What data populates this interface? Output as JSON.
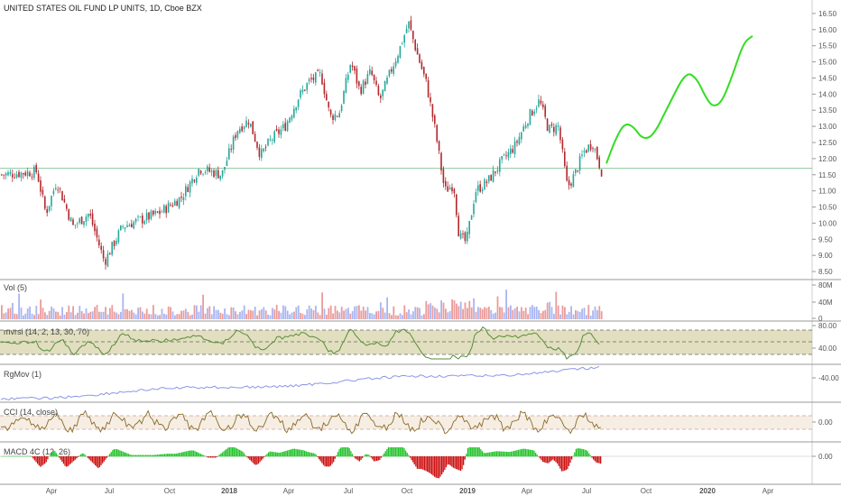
{
  "header": {
    "symbol_title": "UNITED STATES OIL FUND LP UNITS, 1D, Cboe BZX"
  },
  "colors": {
    "up": "#26a69a",
    "down": "#b2282d",
    "forecast": "#33dd22",
    "support_line": "#8fc9a0",
    "vol_up": "#9aa8f0",
    "vol_down": "#e88a88",
    "mvrsi_band": "#c8c48a",
    "mvrsi_line": "#5a8c3a",
    "rgmov_line": "#8c96e6",
    "cci_line": "#8a6a2a",
    "cci_band": "#f5ece0",
    "macd_pos": "#22c22a",
    "macd_neg": "#cc1010"
  },
  "price_axis": {
    "ticks": [
      "16.50",
      "16.00",
      "15.50",
      "15.00",
      "14.50",
      "14.00",
      "13.50",
      "13.00",
      "12.50",
      "12.00",
      "11.50",
      "11.00",
      "10.50",
      "10.00",
      "9.50",
      "9.00",
      "8.50"
    ]
  },
  "time_axis": {
    "labels": [
      "Apr",
      "Jul",
      "Oct",
      "2018",
      "Apr",
      "Jul",
      "Oct",
      "2019",
      "Apr",
      "Jul",
      "Oct",
      "2020",
      "Apr"
    ]
  },
  "panes": {
    "vol": {
      "title": "Vol (5)",
      "ticks": [
        "80M",
        "40M",
        "0"
      ]
    },
    "mvrsi": {
      "title": "mvrsi (14, 2, 13, 30, 70)",
      "ticks": [
        "80.00",
        "40.00"
      ]
    },
    "rgmov": {
      "title": "RgMov (1)",
      "ticks": [
        "-40.00"
      ]
    },
    "cci": {
      "title": "CCI (14, close)",
      "ticks": [
        "0.00"
      ]
    },
    "macd": {
      "title": "MACD 4C (12, 26)",
      "ticks": [
        "0.00"
      ]
    }
  },
  "chart_data": {
    "type": "line",
    "support_level": 11.7,
    "ylim": [
      8.25,
      16.75
    ],
    "price_series": [
      {
        "t": 0,
        "p": 11.5
      },
      {
        "t": 40,
        "p": 11.6
      },
      {
        "t": 50,
        "p": 10.3
      },
      {
        "t": 62,
        "p": 11.3
      },
      {
        "t": 80,
        "p": 9.9
      },
      {
        "t": 98,
        "p": 10.3
      },
      {
        "t": 115,
        "p": 8.8
      },
      {
        "t": 135,
        "p": 9.9
      },
      {
        "t": 155,
        "p": 10.1
      },
      {
        "t": 175,
        "p": 10.3
      },
      {
        "t": 200,
        "p": 10.8
      },
      {
        "t": 220,
        "p": 11.7
      },
      {
        "t": 245,
        "p": 11.5
      },
      {
        "t": 262,
        "p": 12.9
      },
      {
        "t": 275,
        "p": 13.2
      },
      {
        "t": 288,
        "p": 12.1
      },
      {
        "t": 300,
        "p": 12.6
      },
      {
        "t": 315,
        "p": 13.0
      },
      {
        "t": 330,
        "p": 13.9
      },
      {
        "t": 342,
        "p": 14.4
      },
      {
        "t": 355,
        "p": 14.6
      },
      {
        "t": 365,
        "p": 13.3
      },
      {
        "t": 375,
        "p": 13.4
      },
      {
        "t": 388,
        "p": 15.0
      },
      {
        "t": 398,
        "p": 14.1
      },
      {
        "t": 410,
        "p": 14.7
      },
      {
        "t": 420,
        "p": 13.8
      },
      {
        "t": 432,
        "p": 14.7
      },
      {
        "t": 442,
        "p": 15.4
      },
      {
        "t": 452,
        "p": 16.2
      },
      {
        "t": 462,
        "p": 15.2
      },
      {
        "t": 472,
        "p": 14.3
      },
      {
        "t": 482,
        "p": 12.8
      },
      {
        "t": 492,
        "p": 11.0
      },
      {
        "t": 502,
        "p": 11.2
      },
      {
        "t": 508,
        "p": 9.6
      },
      {
        "t": 516,
        "p": 9.4
      },
      {
        "t": 526,
        "p": 11.0
      },
      {
        "t": 540,
        "p": 11.3
      },
      {
        "t": 555,
        "p": 11.9
      },
      {
        "t": 570,
        "p": 12.4
      },
      {
        "t": 585,
        "p": 13.3
      },
      {
        "t": 597,
        "p": 13.8
      },
      {
        "t": 607,
        "p": 12.9
      },
      {
        "t": 618,
        "p": 13.0
      },
      {
        "t": 628,
        "p": 11.1
      },
      {
        "t": 636,
        "p": 11.5
      },
      {
        "t": 646,
        "p": 12.2
      },
      {
        "t": 656,
        "p": 12.5
      },
      {
        "t": 666,
        "p": 11.6
      }
    ],
    "forecast_series": [
      {
        "t": 672,
        "p": 11.85
      },
      {
        "t": 682,
        "p": 12.6
      },
      {
        "t": 692,
        "p": 13.1
      },
      {
        "t": 702,
        "p": 13.0
      },
      {
        "t": 712,
        "p": 12.6
      },
      {
        "t": 724,
        "p": 12.7
      },
      {
        "t": 740,
        "p": 13.6
      },
      {
        "t": 760,
        "p": 14.7
      },
      {
        "t": 772,
        "p": 14.5
      },
      {
        "t": 782,
        "p": 13.9
      },
      {
        "t": 790,
        "p": 13.6
      },
      {
        "t": 800,
        "p": 13.75
      },
      {
        "t": 812,
        "p": 14.6
      },
      {
        "t": 824,
        "p": 15.6
      },
      {
        "t": 834,
        "p": 15.8
      }
    ]
  }
}
